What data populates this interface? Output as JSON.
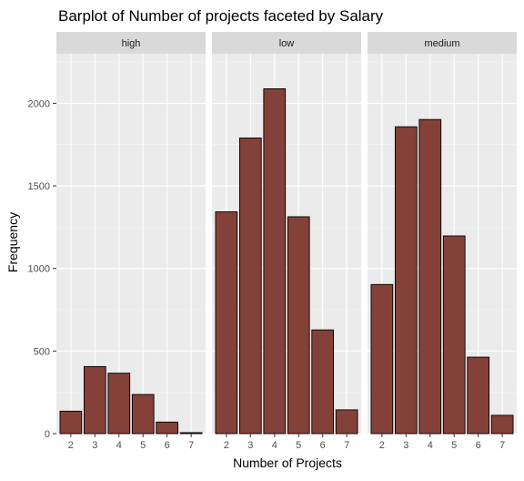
{
  "chart_data": {
    "type": "bar",
    "title": "Barplot of Number of projects faceted by Salary",
    "xlabel": "Number of Projects",
    "ylabel": "Frequency",
    "categories": [
      "2",
      "3",
      "4",
      "5",
      "6",
      "7"
    ],
    "yticks": [
      0,
      500,
      1000,
      1500,
      2000
    ],
    "ylim": [
      0,
      2300
    ],
    "grid": true,
    "bar_fill": "#834139",
    "bar_outline": "#000000",
    "panel_bg": "#ebebeb",
    "strip_bg": "#d9d9d9",
    "facets": [
      {
        "name": "high",
        "values": [
          136,
          406,
          366,
          237,
          70,
          6
        ]
      },
      {
        "name": "low",
        "values": [
          1343,
          1790,
          2088,
          1313,
          628,
          144
        ]
      },
      {
        "name": "medium",
        "values": [
          903,
          1858,
          1902,
          1197,
          463,
          111
        ]
      }
    ]
  }
}
